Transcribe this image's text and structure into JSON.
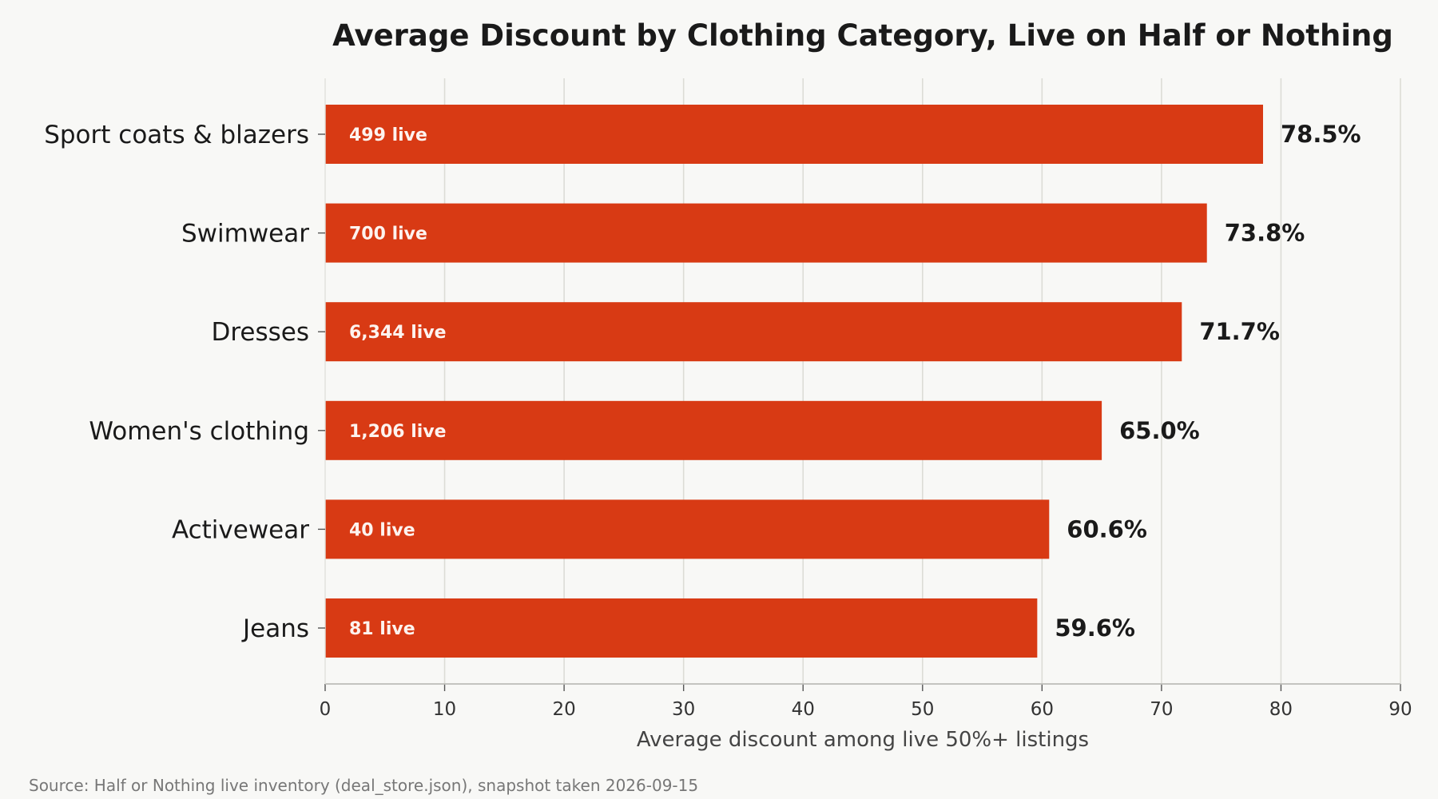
{
  "chart_data": {
    "type": "bar",
    "orientation": "horizontal",
    "title": "Average Discount by Clothing Category, Live on Half or Nothing",
    "xlabel": "Average discount among live 50%+ listings",
    "ylabel": "",
    "xlim": [
      0,
      90
    ],
    "xticks": [
      "0",
      "10",
      "20",
      "30",
      "40",
      "50",
      "60",
      "70",
      "80",
      "90"
    ],
    "grid": "vertical",
    "categories": [
      "Sport coats & blazers",
      "Swimwear",
      "Dresses",
      "Women's clothing",
      "Activewear",
      "Jeans"
    ],
    "values": [
      78.5,
      73.8,
      71.7,
      65.0,
      60.6,
      59.6
    ],
    "value_labels": [
      "78.5%",
      "73.8%",
      "71.7%",
      "65.0%",
      "60.6%",
      "59.6%"
    ],
    "count_labels": [
      "499 live",
      "700 live",
      "6,344 live",
      "1,206 live",
      "40 live",
      "81 live"
    ],
    "bar_color": "#d83a14",
    "grid_color": "#dcdcd6",
    "source": "Source: Half or Nothing live inventory (deal_store.json), snapshot taken 2026-09-15"
  }
}
